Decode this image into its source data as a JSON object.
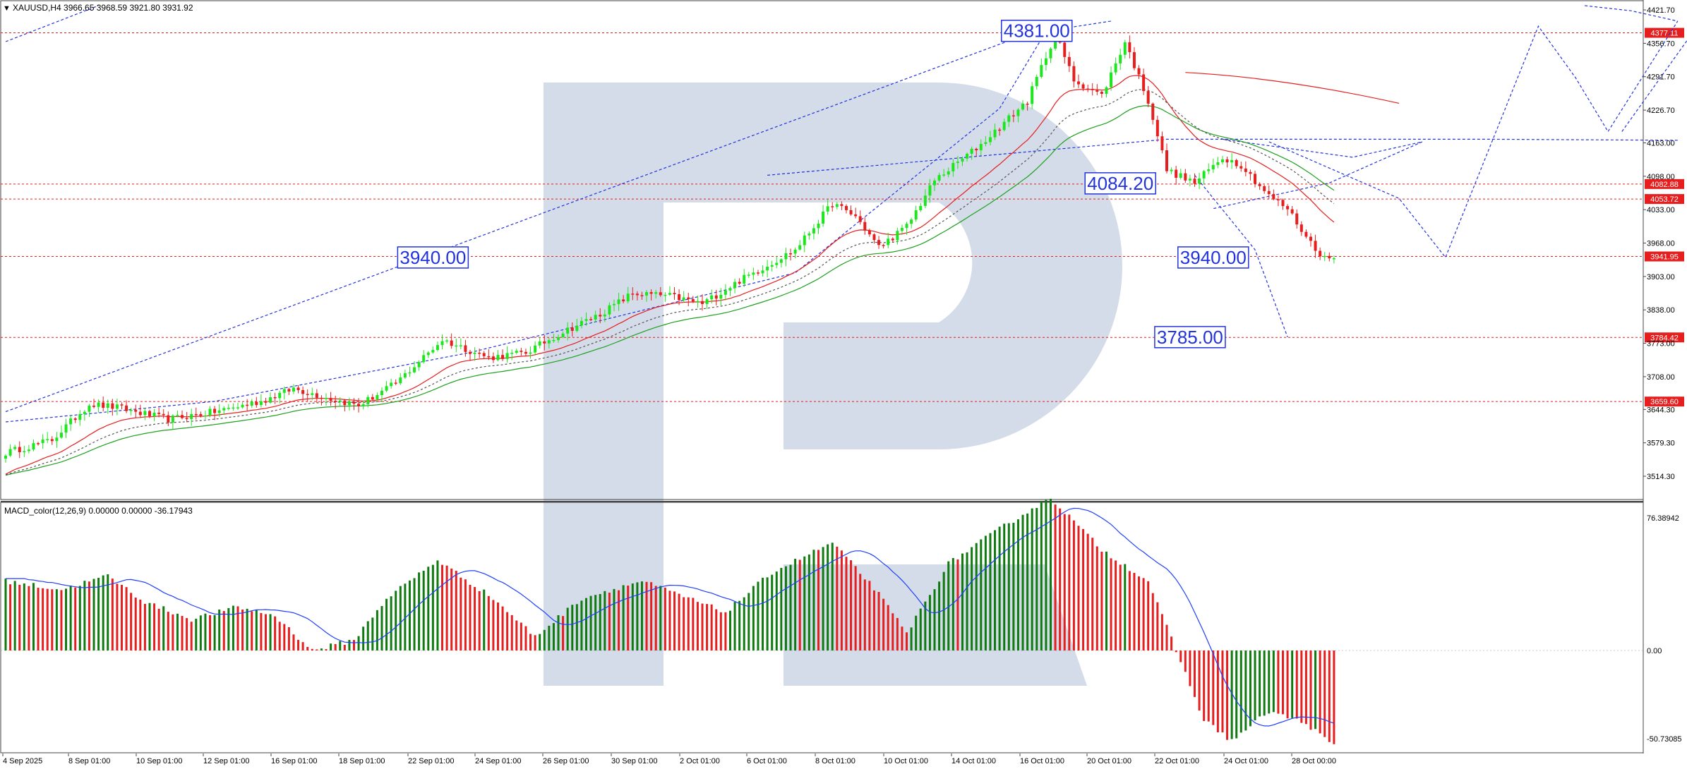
{
  "header": {
    "symbol_line": "XAUUSD,H4  3966.65 3968.59 3921.80 3931.92",
    "macd_line": "MACD_color(12,26,9) 0.00000 0.00000 -36.17943"
  },
  "colors": {
    "bull": "#1ee61e",
    "bear": "#e61e1e",
    "macd_bull": "#0f7a0f",
    "macd_bear": "#e61e1e",
    "macd_signal": "#1f3fff",
    "ma_fast": "#e61e1e",
    "ma_slow": "#1ea01e",
    "level_line": "#e61e1e",
    "forecast": "#2233dd",
    "price_tag": "#e61e1e",
    "watermark": "#d3dce8"
  },
  "chart_data": [
    {
      "type": "candlestick",
      "title": "XAUUSD,H4",
      "ylim": [
        3480,
        4430
      ],
      "y_ticks": [
        "4421.70",
        "4356.70",
        "4291.70",
        "4226.70",
        "4163.00",
        "4098.00",
        "4033.00",
        "3968.00",
        "3903.00",
        "3838.00",
        "3773.00",
        "3708.00",
        "3644.30",
        "3579.30",
        "3514.30"
      ],
      "x_ticks": [
        "4 Sep 2025",
        "8 Sep 01:00",
        "10 Sep 01:00",
        "12 Sep 01:00",
        "16 Sep 01:00",
        "18 Sep 01:00",
        "22 Sep 01:00",
        "24 Sep 01:00",
        "26 Sep 01:00",
        "30 Sep 01:00",
        "2 Oct 01:00",
        "6 Oct 01:00",
        "8 Oct 01:00",
        "10 Oct 01:00",
        "14 Oct 01:00",
        "16 Oct 01:00",
        "20 Oct 01:00",
        "22 Oct 01:00",
        "24 Oct 01:00",
        "28 Oct 00:00"
      ],
      "anchors": [
        [
          0,
          3560
        ],
        [
          10,
          3585
        ],
        [
          18,
          3655
        ],
        [
          24,
          3648
        ],
        [
          35,
          3625
        ],
        [
          45,
          3640
        ],
        [
          55,
          3660
        ],
        [
          62,
          3685
        ],
        [
          70,
          3665
        ],
        [
          76,
          3652
        ],
        [
          84,
          3695
        ],
        [
          94,
          3780
        ],
        [
          104,
          3745
        ],
        [
          112,
          3755
        ],
        [
          120,
          3795
        ],
        [
          128,
          3830
        ],
        [
          135,
          3870
        ],
        [
          143,
          3865
        ],
        [
          150,
          3850
        ],
        [
          158,
          3895
        ],
        [
          170,
          3955
        ],
        [
          178,
          4045
        ],
        [
          183,
          4020
        ],
        [
          188,
          3960
        ],
        [
          194,
          4000
        ],
        [
          200,
          4090
        ],
        [
          210,
          4160
        ],
        [
          220,
          4245
        ],
        [
          226,
          4375
        ],
        [
          230,
          4285
        ],
        [
          236,
          4255
        ],
        [
          241,
          4360
        ],
        [
          246,
          4245
        ],
        [
          250,
          4110
        ],
        [
          256,
          4085
        ],
        [
          262,
          4135
        ],
        [
          266,
          4120
        ],
        [
          272,
          4060
        ],
        [
          276,
          4035
        ],
        [
          280,
          3980
        ],
        [
          284,
          3938
        ]
      ],
      "current_price": "3931.92",
      "levels": [
        {
          "price": 4377.11,
          "tag": "4377.11"
        },
        {
          "price": 4082.88,
          "tag": "4082.88"
        },
        {
          "price": 4053.72,
          "tag": "4053.72"
        },
        {
          "price": 3941.95,
          "tag": "3941.95"
        },
        {
          "price": 3784.42,
          "tag": "3784.42"
        },
        {
          "price": 3659.6,
          "tag": "3659.60"
        }
      ],
      "forecast_labels": [
        {
          "text": "4381.00",
          "price": 4381,
          "bar": 222
        },
        {
          "text": "4084.20",
          "price": 4084.2,
          "bar": 240
        },
        {
          "text": "3940.00",
          "price": 3940,
          "bar": 260
        },
        {
          "text": "3785.00",
          "price": 3785,
          "bar": 255
        },
        {
          "text": "3940.00",
          "price": 3940,
          "bar": 92
        }
      ]
    },
    {
      "type": "bar",
      "title": "MACD_color(12,26,9)",
      "ylim": [
        -56,
        82
      ],
      "y_ticks": [
        "76.38942",
        "0.00",
        "-50.73085"
      ],
      "anchors": [
        [
          0,
          40
        ],
        [
          12,
          35
        ],
        [
          22,
          43
        ],
        [
          30,
          28
        ],
        [
          40,
          18
        ],
        [
          50,
          25
        ],
        [
          58,
          20
        ],
        [
          66,
          0
        ],
        [
          75,
          6
        ],
        [
          82,
          30
        ],
        [
          93,
          52
        ],
        [
          105,
          30
        ],
        [
          114,
          8
        ],
        [
          124,
          30
        ],
        [
          137,
          40
        ],
        [
          147,
          30
        ],
        [
          155,
          22
        ],
        [
          165,
          45
        ],
        [
          178,
          62
        ],
        [
          187,
          36
        ],
        [
          194,
          10
        ],
        [
          203,
          50
        ],
        [
          214,
          70
        ],
        [
          225,
          88
        ],
        [
          236,
          58
        ],
        [
          246,
          40
        ],
        [
          252,
          0
        ],
        [
          258,
          -40
        ],
        [
          264,
          -52
        ],
        [
          272,
          -35
        ],
        [
          280,
          -42
        ],
        [
          286,
          -55
        ]
      ]
    }
  ]
}
